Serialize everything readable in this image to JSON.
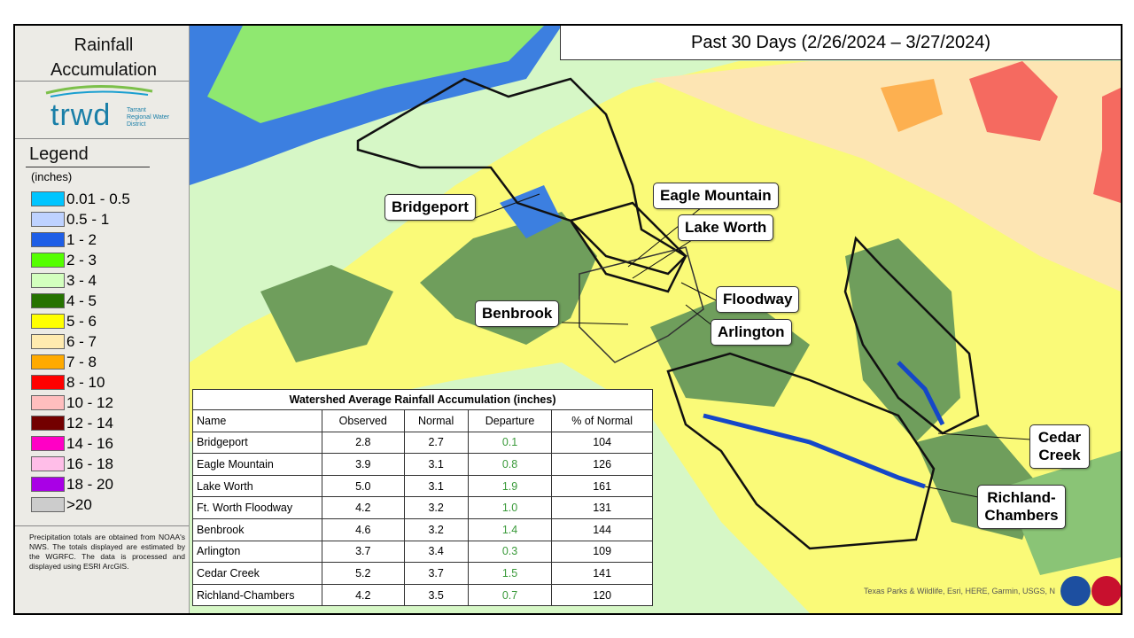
{
  "sidebar": {
    "title": "Rainfall Accumulation",
    "logo": {
      "name": "trwd",
      "tagline": "Tarrant Regional Water District"
    },
    "legend": {
      "title": "Legend",
      "unit": "(inches)",
      "items": [
        {
          "label": "0.01 - 0.5",
          "color": "#00c5ff"
        },
        {
          "label": "0.5 - 1",
          "color": "#bed2ff"
        },
        {
          "label": "1 - 2",
          "color": "#1e5ee6"
        },
        {
          "label": "2 - 3",
          "color": "#55ff00"
        },
        {
          "label": "3 - 4",
          "color": "#d3ffbe"
        },
        {
          "label": "4 - 5",
          "color": "#267300"
        },
        {
          "label": "5 - 6",
          "color": "#ffff00"
        },
        {
          "label": "6 - 7",
          "color": "#ffebaf"
        },
        {
          "label": "7 - 8",
          "color": "#ffaa00"
        },
        {
          "label": "8 - 10",
          "color": "#ff0000"
        },
        {
          "label": "10 - 12",
          "color": "#ffbebe"
        },
        {
          "label": "12 - 14",
          "color": "#730000"
        },
        {
          "label": "14 - 16",
          "color": "#ff00c5"
        },
        {
          "label": "16 - 18",
          "color": "#ffbee8"
        },
        {
          "label": "18 - 20",
          "color": "#a900e6"
        },
        {
          "label": ">20",
          "color": "#cccccc"
        }
      ]
    },
    "note": "Precipitation totals are obtained from NOAA's NWS. The totals displayed are estimated by the WGRFC. The data is processed and displayed using ESRI ArcGIS."
  },
  "header": {
    "title": "Past 30 Days (2/26/2024 – 3/27/2024)"
  },
  "map": {
    "callouts": {
      "bridgeport": "Bridgeport",
      "eagle_mountain": "Eagle Mountain",
      "lake_worth": "Lake Worth",
      "floodway": "Floodway",
      "benbrook": "Benbrook",
      "arlington": "Arlington",
      "cedar_creek": "Cedar Creek",
      "richland_chambers": "Richland-Chambers"
    },
    "attribution": "Texas Parks & Wildlife, Esri, HERE, Garmin, USGS, N"
  },
  "table": {
    "title": "Watershed Average Rainfall Accumulation (inches)",
    "columns": [
      "Name",
      "Observed",
      "Normal",
      "Departure",
      "% of Normal"
    ],
    "rows": [
      [
        "Bridgeport",
        "2.8",
        "2.7",
        "0.1",
        "104"
      ],
      [
        "Eagle Mountain",
        "3.9",
        "3.1",
        "0.8",
        "126"
      ],
      [
        "Lake Worth",
        "5.0",
        "3.1",
        "1.9",
        "161"
      ],
      [
        "Ft. Worth Floodway",
        "4.2",
        "3.2",
        "1.0",
        "131"
      ],
      [
        "Benbrook",
        "4.6",
        "3.2",
        "1.4",
        "144"
      ],
      [
        "Arlington",
        "3.7",
        "3.4",
        "0.3",
        "109"
      ],
      [
        "Cedar Creek",
        "5.2",
        "3.7",
        "1.5",
        "141"
      ],
      [
        "Richland-Chambers",
        "4.2",
        "3.5",
        "0.7",
        "120"
      ]
    ]
  }
}
